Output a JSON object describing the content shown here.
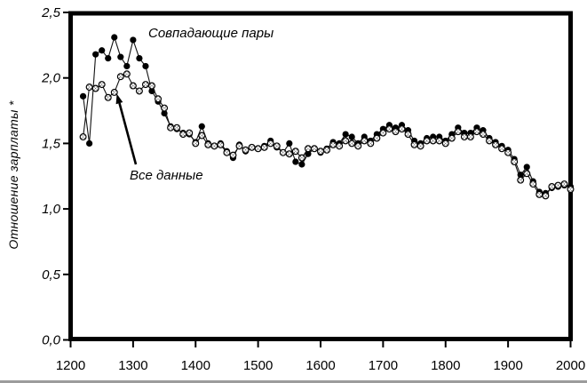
{
  "chart_data": {
    "type": "line",
    "title": "",
    "xlabel": "",
    "ylabel": "Отношение зарплаты *",
    "xlim": [
      1200,
      2000
    ],
    "ylim": [
      0,
      2.5
    ],
    "grid": false,
    "legend": "inline-annotations",
    "x_ticks": {
      "values": [
        1200,
        1300,
        1400,
        1500,
        1600,
        1700,
        1800,
        1900,
        2000
      ],
      "labels": [
        "1200",
        "1300",
        "1400",
        "1500",
        "1600",
        "1700",
        "1800",
        "1900",
        "2000"
      ]
    },
    "y_ticks": {
      "values": [
        0,
        0.5,
        1,
        1.5,
        2,
        2.5
      ],
      "labels": [
        "0,0",
        "0,5",
        "1,0",
        "1,5",
        "2,0",
        "2,5"
      ]
    },
    "x": [
      1220,
      1230,
      1240,
      1250,
      1260,
      1270,
      1280,
      1290,
      1300,
      1310,
      1320,
      1330,
      1340,
      1350,
      1360,
      1370,
      1380,
      1390,
      1400,
      1410,
      1420,
      1430,
      1440,
      1450,
      1460,
      1470,
      1480,
      1490,
      1500,
      1510,
      1520,
      1530,
      1540,
      1550,
      1560,
      1570,
      1580,
      1590,
      1600,
      1610,
      1620,
      1630,
      1640,
      1650,
      1660,
      1670,
      1680,
      1690,
      1700,
      1710,
      1720,
      1730,
      1740,
      1750,
      1760,
      1770,
      1780,
      1790,
      1800,
      1810,
      1820,
      1830,
      1840,
      1850,
      1860,
      1870,
      1880,
      1890,
      1900,
      1910,
      1920,
      1930,
      1940,
      1950,
      1960,
      1970,
      1980,
      1990,
      2000
    ],
    "series": [
      {
        "name": "Совпадающие пары",
        "marker": "filled-circle",
        "color": "#000000",
        "values": [
          1.86,
          1.5,
          2.18,
          2.21,
          2.15,
          2.31,
          2.16,
          2.09,
          2.29,
          2.15,
          2.09,
          1.9,
          1.82,
          1.73,
          1.63,
          1.61,
          1.58,
          1.57,
          1.51,
          1.63,
          1.5,
          1.48,
          1.5,
          1.44,
          1.39,
          1.49,
          1.44,
          1.47,
          1.46,
          1.48,
          1.52,
          1.47,
          1.43,
          1.5,
          1.36,
          1.34,
          1.42,
          1.46,
          1.43,
          1.46,
          1.51,
          1.5,
          1.57,
          1.55,
          1.5,
          1.55,
          1.52,
          1.57,
          1.61,
          1.64,
          1.62,
          1.64,
          1.6,
          1.52,
          1.5,
          1.54,
          1.55,
          1.55,
          1.52,
          1.57,
          1.62,
          1.58,
          1.58,
          1.62,
          1.6,
          1.54,
          1.51,
          1.48,
          1.45,
          1.38,
          1.26,
          1.32,
          1.21,
          1.13,
          1.12,
          1.16,
          1.17,
          1.18,
          1.17
        ]
      },
      {
        "name": "Все данные",
        "marker": "stippled-open-circle",
        "color": "#000000",
        "values": [
          1.55,
          1.93,
          1.92,
          1.95,
          1.85,
          1.89,
          2.01,
          2.03,
          1.94,
          1.9,
          1.95,
          1.94,
          1.84,
          1.77,
          1.62,
          1.62,
          1.57,
          1.58,
          1.5,
          1.56,
          1.49,
          1.48,
          1.49,
          1.43,
          1.41,
          1.48,
          1.45,
          1.47,
          1.46,
          1.47,
          1.5,
          1.48,
          1.43,
          1.42,
          1.44,
          1.39,
          1.46,
          1.46,
          1.44,
          1.45,
          1.49,
          1.48,
          1.52,
          1.5,
          1.48,
          1.52,
          1.5,
          1.54,
          1.58,
          1.61,
          1.59,
          1.61,
          1.57,
          1.49,
          1.48,
          1.52,
          1.52,
          1.52,
          1.5,
          1.54,
          1.59,
          1.55,
          1.55,
          1.59,
          1.57,
          1.52,
          1.49,
          1.46,
          1.43,
          1.36,
          1.22,
          1.27,
          1.19,
          1.11,
          1.1,
          1.17,
          1.18,
          1.19,
          1.15
        ]
      }
    ],
    "annotations": [
      {
        "text": "Совпадающие пары",
        "target_series": "Совпадающие пары",
        "arrow": false
      },
      {
        "text": "Все данные",
        "target_series": "Все данные",
        "arrow": true
      }
    ]
  },
  "colors": {
    "foreground": "#000000",
    "background": "#ffffff",
    "bottom_edge_line": "#9c9c9c"
  }
}
